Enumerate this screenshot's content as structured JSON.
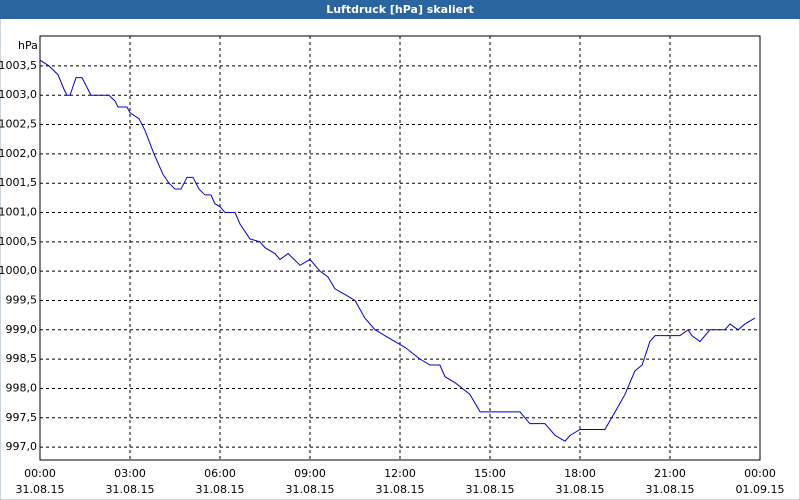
{
  "chart_data": {
    "type": "line",
    "title": "Luftdruck [hPa] skaliert",
    "y_label": "hPa",
    "x": [
      0,
      0.3,
      0.6,
      0.8,
      0.9,
      1.0,
      1.2,
      1.4,
      1.6,
      1.7,
      2.3,
      2.5,
      2.6,
      2.9,
      3.0,
      3.3,
      3.5,
      3.8,
      4.1,
      4.3,
      4.5,
      4.7,
      4.9,
      5.1,
      5.3,
      5.5,
      5.7,
      5.83,
      6.0,
      6.17,
      6.5,
      6.67,
      7.0,
      7.33,
      7.5,
      7.83,
      8.0,
      8.27,
      8.67,
      9.0,
      9.33,
      9.6,
      9.83,
      10.17,
      10.5,
      10.83,
      11.17,
      11.5,
      11.83,
      12.17,
      12.67,
      13.0,
      13.33,
      13.5,
      13.83,
      14.33,
      14.67,
      16.0,
      16.33,
      16.83,
      17.17,
      17.5,
      17.67,
      18.0,
      18.83,
      19.17,
      19.5,
      19.83,
      20.07,
      20.33,
      20.5,
      21.33,
      21.6,
      21.73,
      22.0,
      22.33,
      22.83,
      23.0,
      23.27,
      23.5,
      23.83
    ],
    "values": [
      1003.6,
      1003.5,
      1003.35,
      1003.1,
      1003.0,
      1003.0,
      1003.3,
      1003.3,
      1003.1,
      1003.0,
      1003.0,
      1002.9,
      1002.8,
      1002.8,
      1002.7,
      1002.6,
      1002.4,
      1002.0,
      1001.65,
      1001.5,
      1001.4,
      1001.4,
      1001.6,
      1001.6,
      1001.4,
      1001.3,
      1001.3,
      1001.15,
      1001.1,
      1001.0,
      1001.0,
      1000.8,
      1000.55,
      1000.5,
      1000.4,
      1000.3,
      1000.2,
      1000.3,
      1000.1,
      1000.2,
      1000.0,
      999.9,
      999.7,
      999.6,
      999.5,
      999.2,
      999.0,
      998.9,
      998.8,
      998.7,
      998.5,
      998.4,
      998.4,
      998.2,
      998.1,
      997.9,
      997.6,
      997.6,
      997.4,
      997.4,
      997.2,
      997.1,
      997.2,
      997.3,
      997.3,
      997.6,
      997.9,
      998.3,
      998.4,
      998.8,
      998.9,
      998.9,
      999.0,
      998.9,
      998.8,
      999.0,
      999.0,
      999.1,
      999.0,
      999.1,
      999.2
    ],
    "color": "#0000cc",
    "xlim": [
      0,
      24
    ],
    "xticks": [
      {
        "value": 0,
        "label": "00:00"
      },
      {
        "value": 3,
        "label": "03:00"
      },
      {
        "value": 6,
        "label": "06:00"
      },
      {
        "value": 9,
        "label": "09:00"
      },
      {
        "value": 12,
        "label": "12:00"
      },
      {
        "value": 15,
        "label": "15:00"
      },
      {
        "value": 18,
        "label": "18:00"
      },
      {
        "value": 21,
        "label": "21:00"
      },
      {
        "value": 24,
        "label": "00:00"
      }
    ],
    "xtick_dates": [
      "31.08.15",
      "31.08.15",
      "31.08.15",
      "31.08.15",
      "31.08.15",
      "31.08.15",
      "31.08.15",
      "31.08.15",
      "01.09.15"
    ],
    "ylim": [
      996.78,
      1004.01
    ],
    "yticks": [
      {
        "value": 997,
        "label": "997,0"
      },
      {
        "value": 997.5,
        "label": "997,5"
      },
      {
        "value": 998,
        "label": "998,0"
      },
      {
        "value": 998.5,
        "label": "998,5"
      },
      {
        "value": 999,
        "label": "999,0"
      },
      {
        "value": 999.5,
        "label": "999,5"
      },
      {
        "value": 1000,
        "label": "1000,0"
      },
      {
        "value": 1000.5,
        "label": "1000,5"
      },
      {
        "value": 1001,
        "label": "1001,0"
      },
      {
        "value": 1001.5,
        "label": "1001,5"
      },
      {
        "value": 1002,
        "label": "1002,0"
      },
      {
        "value": 1002.5,
        "label": "1002,5"
      },
      {
        "value": 1003,
        "label": "1003,0"
      },
      {
        "value": 1003.5,
        "label": "1003,5"
      }
    ],
    "grid": true
  }
}
